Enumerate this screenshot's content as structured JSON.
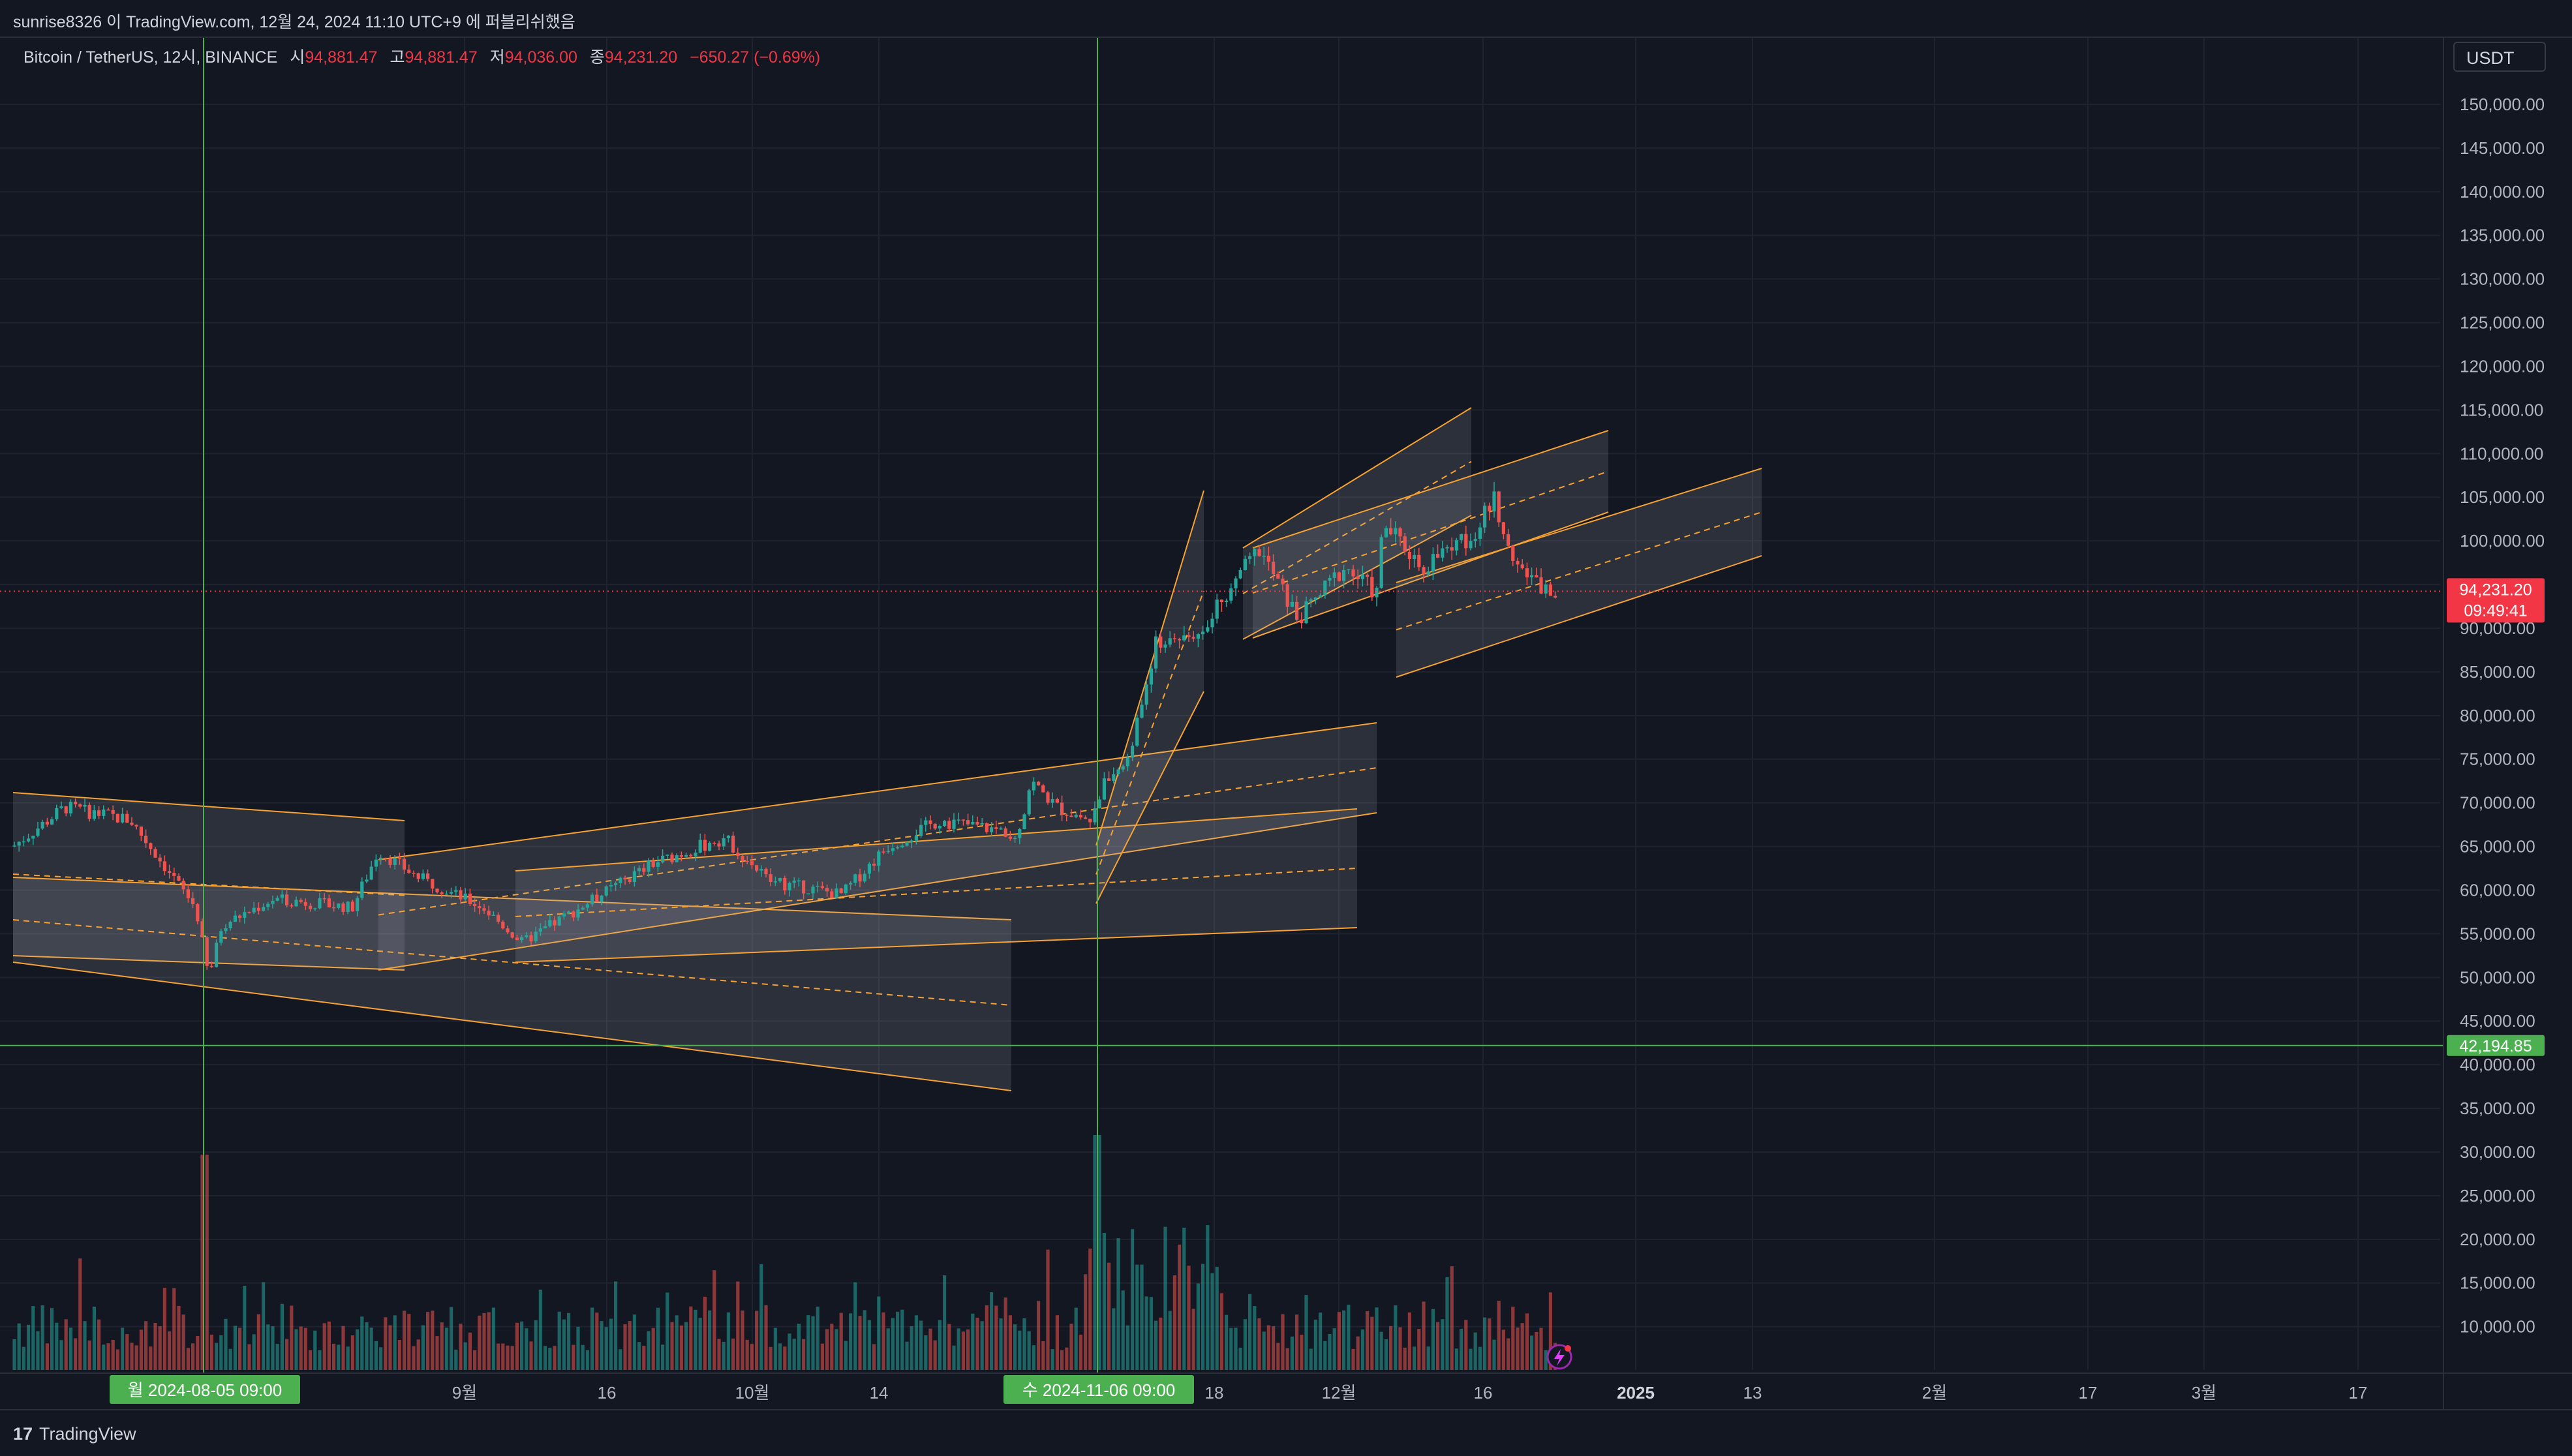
{
  "header": {
    "published_text": "sunrise8326 이 TradingView.com, 12월 24, 2024 11:10 UTC+9 에 퍼블리쉬했음"
  },
  "legend": {
    "symbol": "Bitcoin / TetherUS, 12시, BINANCE",
    "open_label": "시",
    "open": "94,881.47",
    "high_label": "고",
    "high": "94,881.47",
    "low_label": "저",
    "low": "94,036.00",
    "close_label": "종",
    "close": "94,231.20",
    "change": "−650.27 (−0.69%)"
  },
  "currency": "USDT",
  "price_axis": {
    "ticks": [
      "150,000.00",
      "145,000.00",
      "140,000.00",
      "135,000.00",
      "130,000.00",
      "125,000.00",
      "120,000.00",
      "115,000.00",
      "110,000.00",
      "105,000.00",
      "100,000.00",
      "95,000.00",
      "90,000.00",
      "85,000.00",
      "80,000.00",
      "75,000.00",
      "70,000.00",
      "65,000.00",
      "60,000.00",
      "55,000.00",
      "50,000.00",
      "45,000.00",
      "40,000.00",
      "35,000.00",
      "30,000.00",
      "25,000.00",
      "20,000.00",
      "15,000.00",
      "10,000.00"
    ],
    "current_price_label": "94,231.20",
    "countdown_label": "09:49:41",
    "hline_label": "42,194.85"
  },
  "time_axis": {
    "labels": [
      "9월",
      "16",
      "10월",
      "14",
      "18",
      "12월",
      "16",
      "2025",
      "13",
      "2월",
      "17",
      "3월",
      "17"
    ],
    "marker_left": "월 2024-08-05   09:00",
    "marker_right": "수 2024-11-06   09:00"
  },
  "colors": {
    "background": "#131722",
    "up": "#26a69a",
    "down": "#ef5350",
    "channel": "#f7a231",
    "crosshair": "#4caf50",
    "price_line": "#f23645"
  },
  "footer": {
    "brand_logo": "17",
    "brand": "TradingView"
  }
}
